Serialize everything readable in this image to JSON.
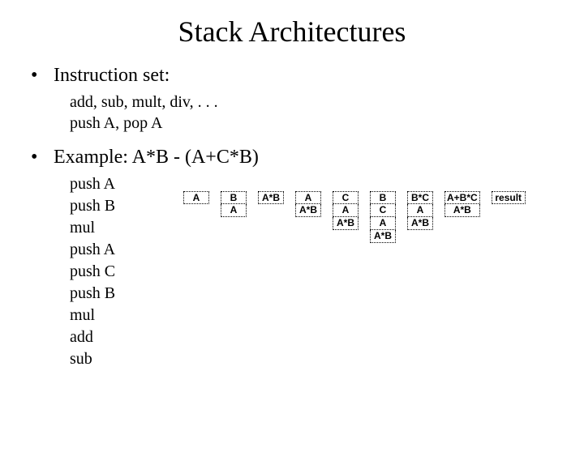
{
  "title": "Stack Architectures",
  "bullets": {
    "b1": "Instruction set:",
    "b2": "Example: A*B - (A+C*B)"
  },
  "sub1": {
    "line1": "add, sub, mult, div, . . .",
    "line2": "push A, pop A"
  },
  "instructions": [
    "push A",
    "push B",
    "mul",
    "push A",
    "push C",
    "push B",
    "mul",
    "add",
    "sub"
  ],
  "stacks": [
    {
      "cells": [
        "A"
      ],
      "wide": false
    },
    {
      "cells": [
        "B",
        "A"
      ],
      "wide": false
    },
    {
      "cells": [
        "A*B"
      ],
      "wide": false
    },
    {
      "cells": [
        "A",
        "A*B"
      ],
      "wide": false
    },
    {
      "cells": [
        "C",
        "A",
        "A*B"
      ],
      "wide": false
    },
    {
      "cells": [
        "B",
        "C",
        "A",
        "A*B"
      ],
      "wide": false
    },
    {
      "cells": [
        "B*C",
        "A",
        "A*B"
      ],
      "wide": false
    },
    {
      "cells": [
        "A+B*C",
        "A*B"
      ],
      "wide": true
    },
    {
      "cells": [
        "result"
      ],
      "wide": true
    }
  ],
  "colors": {
    "background": "#ffffff",
    "text": "#000000",
    "border": "#000000"
  }
}
